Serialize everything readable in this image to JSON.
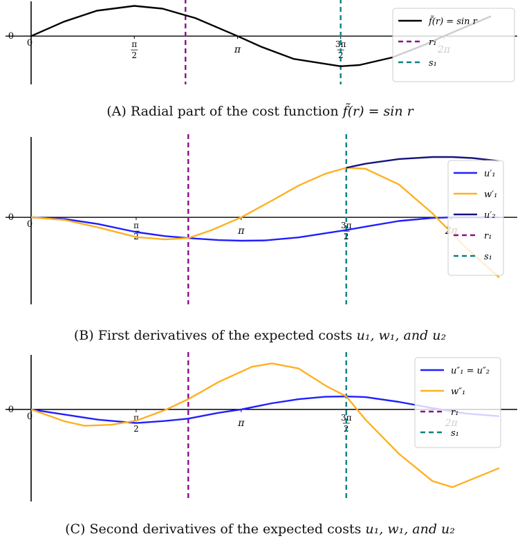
{
  "axis_labels": {
    "zero": "0",
    "origin": "0",
    "pi_half": "π/2",
    "pi": "π",
    "three_pi_half": "3π/2",
    "two_pi": "2π"
  },
  "captions": [
    {
      "prefix": "(A) Radial part of the cost function ",
      "formula": "f̃(r) = sin r"
    },
    {
      "prefix": "(B) First derivatives of the expected costs ",
      "formula": "u₁, w₁, and u₂"
    },
    {
      "prefix": "(C) Second derivatives of the expected costs ",
      "formula": "u₁, w₁, and u₂"
    }
  ],
  "colors": {
    "black": "#000000",
    "blue": "#1f1fff",
    "orange": "#ffb020",
    "navy": "#14147a",
    "purple": "#8b0a8b",
    "teal": "#0a8080"
  },
  "chart_data": [
    {
      "type": "line",
      "title": "",
      "x_ticks": [
        "0",
        "π/2",
        "π",
        "3π/2",
        "2π"
      ],
      "xlim": [
        0,
        7.0
      ],
      "ylim": [
        -1.6,
        1.15
      ],
      "grid": false,
      "legend_position": "top-right",
      "legend": [
        "f̃(r) = sin r",
        "r₁",
        "s₁"
      ],
      "series": [
        {
          "name": "f̃(r) = sin r",
          "style": "solid",
          "color": "black",
          "x": [
            0,
            0.5,
            1.0,
            1.5708,
            2.0,
            2.5,
            3.1416,
            3.5,
            4.0,
            4.7124,
            5.0,
            5.5,
            6.0,
            6.2832,
            7.0
          ],
          "y": [
            0,
            0.479,
            0.841,
            1.0,
            0.909,
            0.598,
            0,
            -0.351,
            -0.757,
            -1.0,
            -0.959,
            -0.706,
            -0.279,
            0,
            0.657
          ]
        }
      ],
      "vlines": [
        {
          "name": "r₁",
          "x": 2.35,
          "color": "purple"
        },
        {
          "name": "s₁",
          "x": 4.7124,
          "color": "teal"
        }
      ]
    },
    {
      "type": "line",
      "title": "",
      "x_ticks": [
        "0",
        "π/2",
        "π",
        "3π/2",
        "2π"
      ],
      "xlim": [
        0,
        7.0
      ],
      "ylim": [
        -2.6,
        2.4
      ],
      "grid": false,
      "legend_position": "right",
      "legend": [
        "u′₁",
        "w′₁",
        "u′₂",
        "r₁",
        "s₁"
      ],
      "series": [
        {
          "name": "u′₁",
          "style": "solid",
          "color": "blue",
          "x": [
            0,
            0.5,
            1.0,
            1.5708,
            2.0,
            2.35,
            2.8,
            3.1416,
            3.5,
            4.0,
            4.7124,
            5.0,
            5.5,
            6.0,
            6.2832,
            6.6,
            7.0
          ],
          "y": [
            0,
            -0.05,
            -0.2,
            -0.44,
            -0.56,
            -0.62,
            -0.68,
            -0.7,
            -0.69,
            -0.6,
            -0.38,
            -0.28,
            -0.11,
            -0.02,
            0,
            0,
            0
          ]
        },
        {
          "name": "w′₁",
          "style": "solid",
          "color": "orange",
          "x": [
            0,
            0.5,
            1.0,
            1.5708,
            2.0,
            2.35,
            2.7,
            3.1416,
            3.6,
            4.0,
            4.4,
            4.7124,
            5.0,
            5.5,
            6.0,
            6.5,
            7.0
          ],
          "y": [
            0,
            -0.08,
            -0.3,
            -0.59,
            -0.66,
            -0.62,
            -0.38,
            0,
            0.5,
            0.95,
            1.3,
            1.48,
            1.45,
            0.98,
            0.12,
            -0.9,
            -1.8
          ]
        },
        {
          "name": "u′₂",
          "style": "solid",
          "color": "navy",
          "x": [
            4.7124,
            5.0,
            5.5,
            6.0,
            6.3,
            6.6,
            7.0
          ],
          "y": [
            1.48,
            1.6,
            1.74,
            1.8,
            1.8,
            1.77,
            1.68
          ]
        }
      ],
      "vlines": [
        {
          "name": "r₁",
          "x": 2.35,
          "color": "purple"
        },
        {
          "name": "s₁",
          "x": 4.7124,
          "color": "teal"
        }
      ]
    },
    {
      "type": "line",
      "title": "",
      "x_ticks": [
        "0",
        "π/2",
        "π",
        "3π/2",
        "2π"
      ],
      "xlim": [
        0,
        7.0
      ],
      "ylim": [
        -2.7,
        1.6
      ],
      "grid": false,
      "legend_position": "top-right",
      "legend": [
        "u″₁ = u″₂",
        "w″₁",
        "r₁",
        "s₁"
      ],
      "series": [
        {
          "name": "u″₁ = u″₂",
          "style": "solid",
          "color": "blue",
          "x": [
            0,
            0.5,
            1.0,
            1.5708,
            2.0,
            2.35,
            2.8,
            3.1416,
            3.6,
            4.0,
            4.4,
            4.7124,
            5.0,
            5.5,
            6.0,
            6.5,
            7.0
          ],
          "y": [
            0,
            -0.15,
            -0.3,
            -0.4,
            -0.34,
            -0.27,
            -0.1,
            0,
            0.18,
            0.3,
            0.37,
            0.38,
            0.36,
            0.22,
            0.04,
            -0.12,
            -0.2
          ]
        },
        {
          "name": "w″₁",
          "style": "solid",
          "color": "orange",
          "x": [
            0,
            0.5,
            0.8,
            1.2,
            1.5708,
            2.0,
            2.35,
            2.8,
            3.3,
            3.6,
            4.0,
            4.4,
            4.7124,
            5.0,
            5.5,
            6.0,
            6.3,
            7.0
          ],
          "y": [
            0,
            -0.35,
            -0.48,
            -0.45,
            -0.33,
            -0.02,
            0.3,
            0.8,
            1.25,
            1.35,
            1.2,
            0.7,
            0.38,
            -0.3,
            -1.3,
            -2.1,
            -2.28,
            -1.72
          ]
        }
      ],
      "vlines": [
        {
          "name": "r₁",
          "x": 2.35,
          "color": "purple"
        },
        {
          "name": "s₁",
          "x": 4.7124,
          "color": "teal"
        }
      ]
    }
  ]
}
